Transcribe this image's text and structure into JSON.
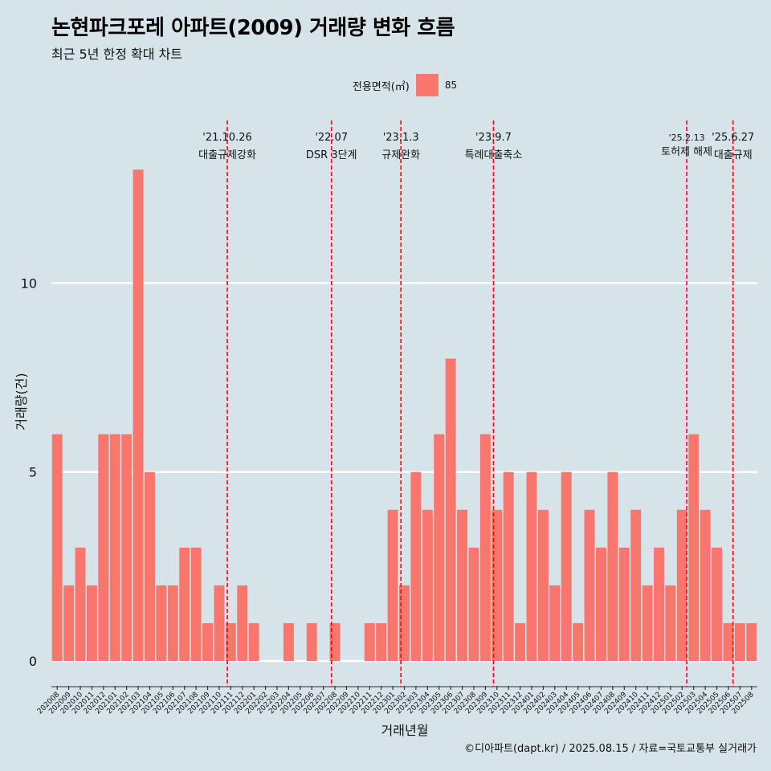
{
  "title": "논현파크포레 아파트(2009) 거래량 변화 흐름",
  "subtitle": "최근 5년 한정 확대 차트",
  "legend": {
    "title": "전용면적(㎡)",
    "item": "85"
  },
  "caption": "©디아파트(dapt.kr) / 2025.08.15 / 자료=국토교통부 실거래가",
  "colors": {
    "bar": "#f8766d",
    "background": "#d6e4ea",
    "grid": "#ffffff",
    "vline": "#ff0000"
  },
  "chart_data": {
    "type": "bar",
    "xlabel": "거래년월",
    "ylabel": "거래량(건)",
    "ylim": [
      0,
      13
    ],
    "yticks": [
      0,
      5,
      10
    ],
    "grid": true,
    "legend_position": "top",
    "categories": [
      "202008",
      "202009",
      "202010",
      "202011",
      "202012",
      "202101",
      "202102",
      "202103",
      "202104",
      "202105",
      "202106",
      "202107",
      "202108",
      "202109",
      "202110",
      "202111",
      "202112",
      "202201",
      "202202",
      "202203",
      "202204",
      "202205",
      "202206",
      "202207",
      "202208",
      "202209",
      "202210",
      "202211",
      "202212",
      "202301",
      "202302",
      "202303",
      "202304",
      "202305",
      "202306",
      "202307",
      "202308",
      "202309",
      "202310",
      "202311",
      "202312",
      "202401",
      "202402",
      "202403",
      "202404",
      "202405",
      "202406",
      "202407",
      "202408",
      "202409",
      "202410",
      "202411",
      "202412",
      "202501",
      "202502",
      "202503",
      "202504",
      "202505",
      "202506",
      "202507",
      "202508"
    ],
    "series": [
      {
        "name": "85",
        "values": [
          6,
          2,
          3,
          2,
          6,
          6,
          6,
          13,
          5,
          2,
          2,
          3,
          3,
          1,
          2,
          1,
          2,
          1,
          0,
          0,
          1,
          0,
          1,
          0,
          1,
          0,
          0,
          1,
          1,
          4,
          2,
          5,
          4,
          6,
          8,
          4,
          3,
          6,
          4,
          5,
          1,
          5,
          4,
          2,
          5,
          1,
          4,
          3,
          5,
          3,
          4,
          2,
          3,
          2,
          4,
          6,
          4,
          3,
          1,
          1,
          1
        ]
      }
    ],
    "annotations": [
      {
        "date": "'21.10.26",
        "label": "대출규제강화",
        "position": 14.7
      },
      {
        "date": "'22.07",
        "label": "DSR 3단계",
        "position": 23.7
      },
      {
        "date": "'23.1.3",
        "label": "규제완화",
        "position": 29.7
      },
      {
        "date": "'23.9.7",
        "label": "특례대출축소",
        "position": 37.7
      },
      {
        "date": "'25.2.13",
        "label": "토허제 해제",
        "position": 54.4
      },
      {
        "date": "'25.6.27",
        "label": "대출규제",
        "position": 58.4
      }
    ]
  }
}
